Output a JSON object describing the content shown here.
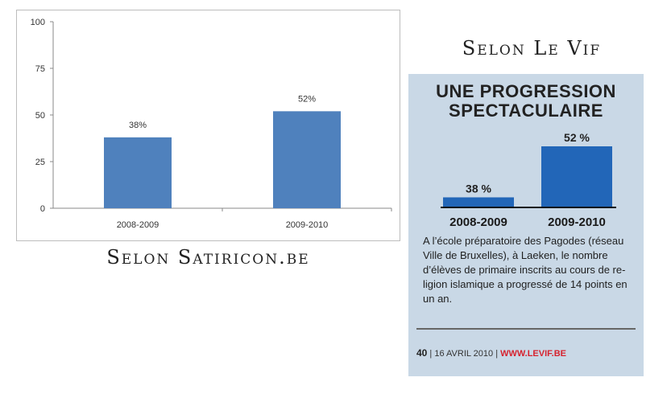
{
  "left": {
    "caption": "Selon Satiricon.be",
    "chart_data": {
      "type": "bar",
      "categories": [
        "2008-2009",
        "2009-2010"
      ],
      "values": [
        38,
        52
      ],
      "data_labels": [
        "38%",
        "52%"
      ],
      "ylim": [
        0,
        100
      ],
      "yticks": [
        0,
        25,
        50,
        75,
        100
      ],
      "grid": false,
      "bar_color": "#4f81bd"
    }
  },
  "right": {
    "caption": "Selon Le Vif",
    "title_lines": [
      "UNE PROGRESSION",
      "SPECTACULAIRE"
    ],
    "chart_data": {
      "type": "bar",
      "categories": [
        "2008-2009",
        "2009-2010"
      ],
      "values": [
        38,
        52
      ],
      "data_labels": [
        "38 %",
        "52 %"
      ],
      "bar_color": "#2266b8"
    },
    "body_text": "A l’école préparatoire des Pagodes (réseau Ville de Bruxelles), à Laeken, le nombre d’élèves de primaire inscrits au cours de re-ligion islamique a progressé de 14 points en un an.",
    "footer": {
      "page": "40",
      "date": "16 AVRIL 2010",
      "url": "WWW.LEVIF.BE"
    },
    "background": "#c9d8e6"
  }
}
